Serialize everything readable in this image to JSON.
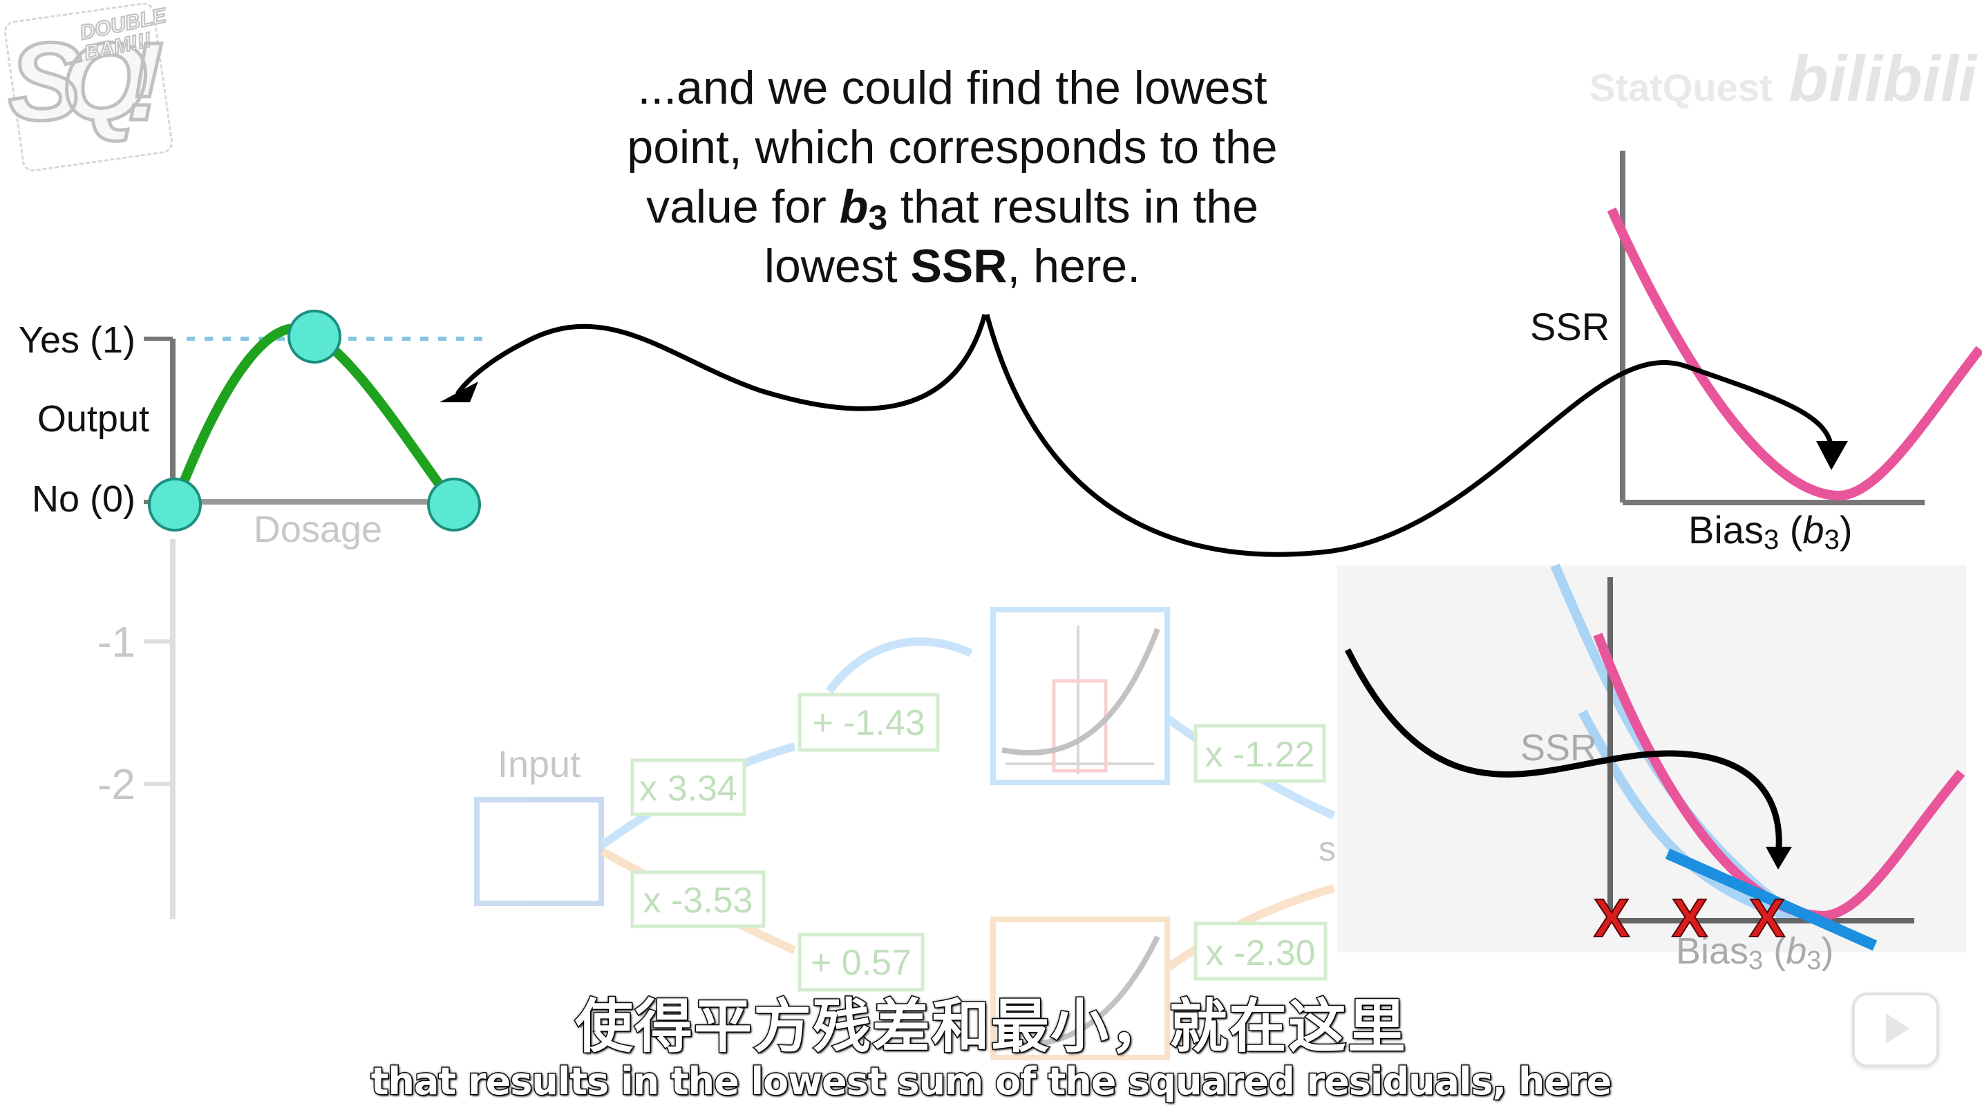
{
  "narration": {
    "lines": [
      "...and we could find the lowest",
      "point, which corresponds to the",
      [
        "value for ",
        "b",
        "3",
        " that results in the"
      ],
      [
        "lowest ",
        "SSR",
        ", here."
      ]
    ]
  },
  "output_plot": {
    "yes_label": "Yes (1)",
    "output_label": "Output",
    "no_label": "No (0)",
    "xlabel": "Dosage",
    "curve_color": "#1fa31f",
    "point_color": "#5ae8d2"
  },
  "faded_axis": {
    "tick_labels": [
      "-1",
      "-2"
    ]
  },
  "network": {
    "input_label": "Input",
    "weights": [
      "x 3.34",
      "x -3.53",
      "x -1.22",
      "x -2.30"
    ],
    "biases": [
      "+ -1.43",
      "+ 0.57"
    ],
    "partial_label": "s"
  },
  "ssr_plot_top": {
    "ylabel": "SSR",
    "xlabel": [
      "Bias",
      "3",
      " (",
      "b",
      "3",
      ")"
    ],
    "curve_color": "#e8559b"
  },
  "ssr_plot_bottom": {
    "ylabel": "SSR",
    "xlabel": [
      "Bias",
      "3",
      " (",
      "b",
      "3",
      ")"
    ],
    "marker_glyph": "X",
    "marker_color": "#d81e1e",
    "tangent_color": "#1c8fe0"
  },
  "subtitles": {
    "zh": "使得平方残差和最小，就在这里",
    "en": "that results in the lowest sum of the squared residuals, here"
  },
  "watermark": {
    "text": "StatQuest",
    "brand": "bilibili"
  },
  "logo": {
    "letters": "SQ!",
    "small_text": "DOUBLE BAM!!!"
  }
}
